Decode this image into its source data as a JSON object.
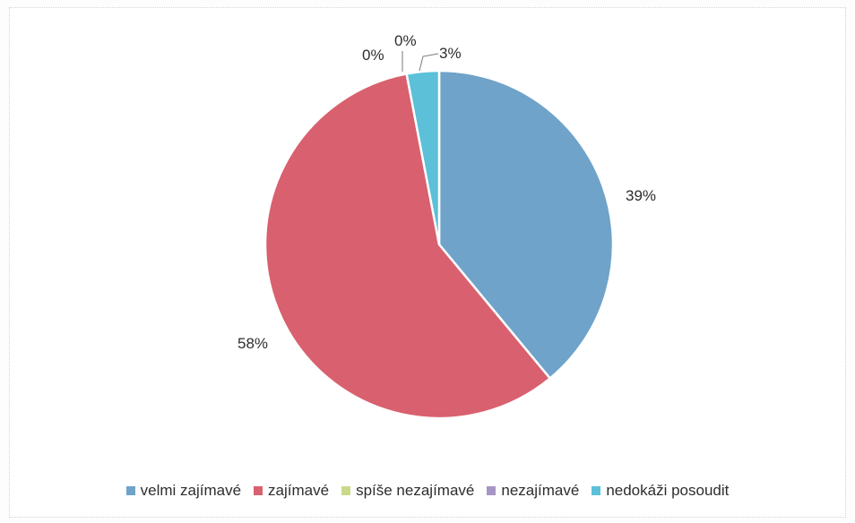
{
  "chart_data": {
    "type": "pie",
    "title": "",
    "categories": [
      "velmi zajímavé",
      "zajímavé",
      "spíše nezajímavé",
      "nezajímavé",
      "nedokáži posoudit"
    ],
    "values": [
      39,
      58,
      0,
      0,
      3
    ],
    "data_labels": [
      "39%",
      "58%",
      "0%",
      "0%",
      "3%"
    ],
    "colors": [
      "#6fa3c9",
      "#d9606e",
      "#c9d98a",
      "#a795c6",
      "#5bc0d8"
    ],
    "legend_position": "bottom",
    "start_angle": "12 o'clock",
    "direction": "clockwise"
  }
}
